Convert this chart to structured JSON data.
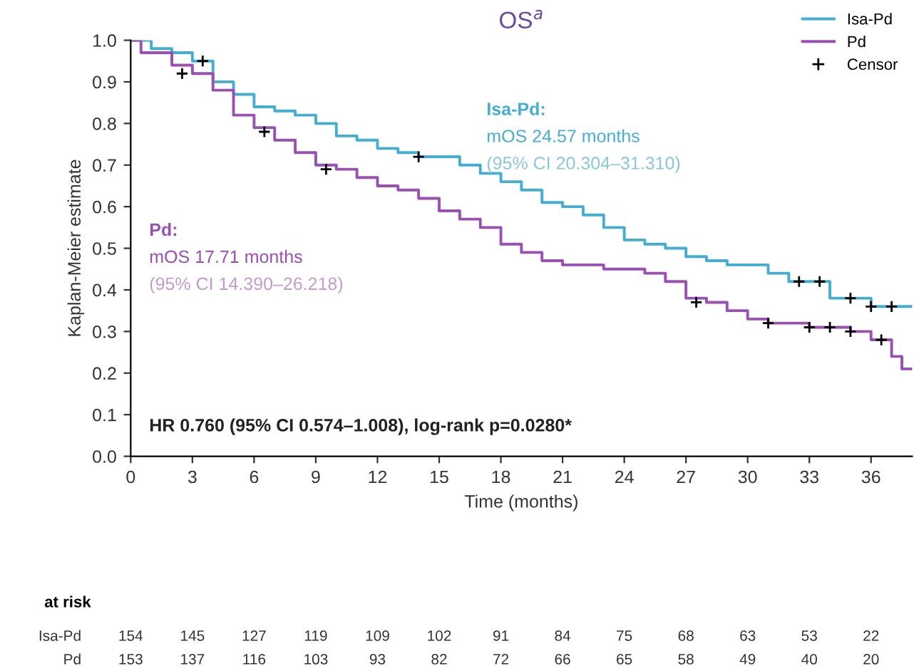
{
  "chart_data": {
    "type": "step",
    "title": "OS$^{a}$",
    "xlabel": "Time (months)",
    "ylabel": "Kaplan-Meier estimate",
    "xlim": [
      0,
      38
    ],
    "xticks": [
      0,
      3,
      6,
      9,
      12,
      15,
      18,
      21,
      24,
      27,
      30,
      33,
      36
    ],
    "ylim": [
      0,
      1
    ],
    "yticks": [
      {
        "value": 0,
        "label": "0.0"
      },
      0.1,
      0.2,
      0.3,
      0.4,
      0.5,
      0.6,
      0.7,
      0.8,
      0.9,
      {
        "value": 1,
        "label": "1.0"
      }
    ],
    "grid": false,
    "legend": "top right",
    "line_style": "solid",
    "series": [
      {
        "name": "Isa-Pd",
        "color": "#45acd2",
        "x": [
          0,
          1,
          2,
          3,
          4,
          5,
          6,
          7,
          8,
          9,
          10,
          11,
          12,
          13,
          14,
          15,
          16,
          17,
          18,
          19,
          20,
          21,
          22,
          23,
          24,
          25,
          26,
          27,
          28,
          29,
          30,
          31,
          32,
          33,
          34,
          35,
          36,
          37,
          38
        ],
        "values": [
          1.0,
          0.98,
          0.97,
          0.95,
          0.9,
          0.87,
          0.84,
          0.83,
          0.82,
          0.8,
          0.77,
          0.76,
          0.74,
          0.73,
          0.72,
          0.72,
          0.7,
          0.68,
          0.66,
          0.64,
          0.61,
          0.6,
          0.58,
          0.55,
          0.52,
          0.51,
          0.5,
          0.48,
          0.47,
          0.46,
          0.46,
          0.44,
          0.42,
          0.42,
          0.38,
          0.38,
          0.36,
          0.36,
          0.36
        ]
      },
      {
        "name": "Pd",
        "color": "#9a50b2",
        "x": [
          0,
          0.5,
          2,
          3,
          4,
          5,
          6,
          7,
          8,
          9,
          10,
          11,
          12,
          13,
          14,
          15,
          16,
          17,
          18,
          19,
          20,
          21,
          22,
          23,
          24,
          25,
          26,
          27,
          28,
          29,
          30,
          31,
          32,
          33,
          34,
          35,
          36,
          37,
          37.5,
          38
        ],
        "values": [
          1.0,
          0.97,
          0.94,
          0.92,
          0.88,
          0.82,
          0.79,
          0.76,
          0.73,
          0.7,
          0.69,
          0.67,
          0.65,
          0.64,
          0.62,
          0.59,
          0.57,
          0.55,
          0.51,
          0.49,
          0.47,
          0.46,
          0.46,
          0.45,
          0.45,
          0.44,
          0.42,
          0.38,
          0.37,
          0.35,
          0.33,
          0.32,
          0.32,
          0.31,
          0.31,
          0.3,
          0.28,
          0.24,
          0.21,
          0.21
        ]
      },
      {
        "name": "Censor",
        "type": "scatter",
        "marker": "cross",
        "color": "#000000",
        "x": [
          3.5,
          14,
          32.5,
          33.5,
          35,
          36,
          37,
          2.5,
          6.5,
          9.5,
          27.5,
          31,
          33,
          34,
          35,
          36.5
        ],
        "values": [
          0.95,
          0.72,
          0.42,
          0.42,
          0.38,
          0.36,
          0.36,
          0.92,
          0.78,
          0.69,
          0.37,
          0.32,
          0.31,
          0.31,
          0.3,
          0.28
        ]
      }
    ],
    "annotations": [
      "Isa-Pd:",
      "mOS 24.57 months",
      "(95% CI 20.304–31.310)",
      "Pd:",
      "mOS 17.71 months",
      "(95% CI 14.390–26.218)",
      "HR 0.760 (95% CI 0.574–1.008), log-rank p=0.0280*",
      "at risk",
      "Isa-Pd 154 145 127 119 109 102 91 84 75 68 63 53 22",
      "Pd 153 137 116 103 93 82 72 66 65 58 49 40 20"
    ]
  }
}
